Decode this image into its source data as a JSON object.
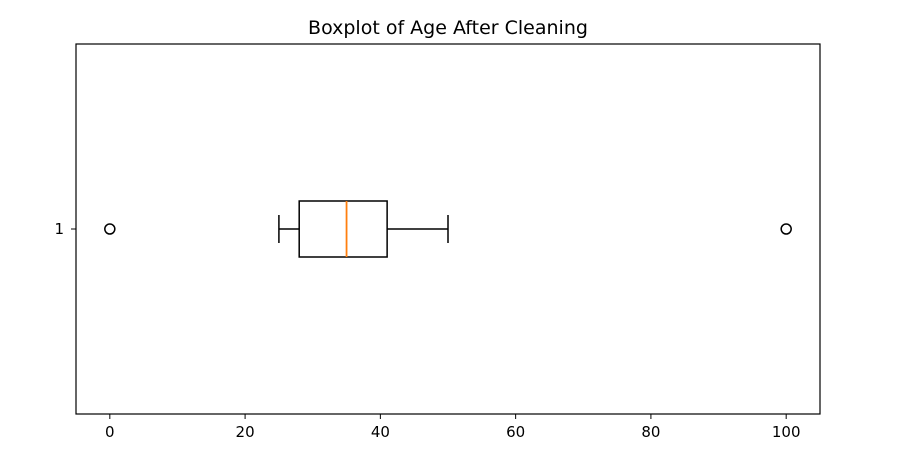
{
  "chart_data": {
    "type": "boxplot",
    "orientation": "horizontal",
    "title": "Boxplot of Age After Cleaning",
    "xlabel": "",
    "ylabel": "",
    "xlim": [
      -5,
      105
    ],
    "x_ticks": [
      0,
      20,
      40,
      60,
      80,
      100
    ],
    "x_tick_labels": [
      "0",
      "20",
      "40",
      "60",
      "80",
      "100"
    ],
    "y_tick_labels": [
      "1"
    ],
    "grid": false,
    "boxes": [
      {
        "label": "1",
        "whisker_low": 25,
        "q1": 28,
        "median": 35,
        "q3": 41,
        "whisker_high": 50,
        "outliers": [
          0,
          100
        ]
      }
    ],
    "colors": {
      "box": "#000000",
      "median": "#ff7f0e",
      "outlier": "#000000"
    }
  }
}
